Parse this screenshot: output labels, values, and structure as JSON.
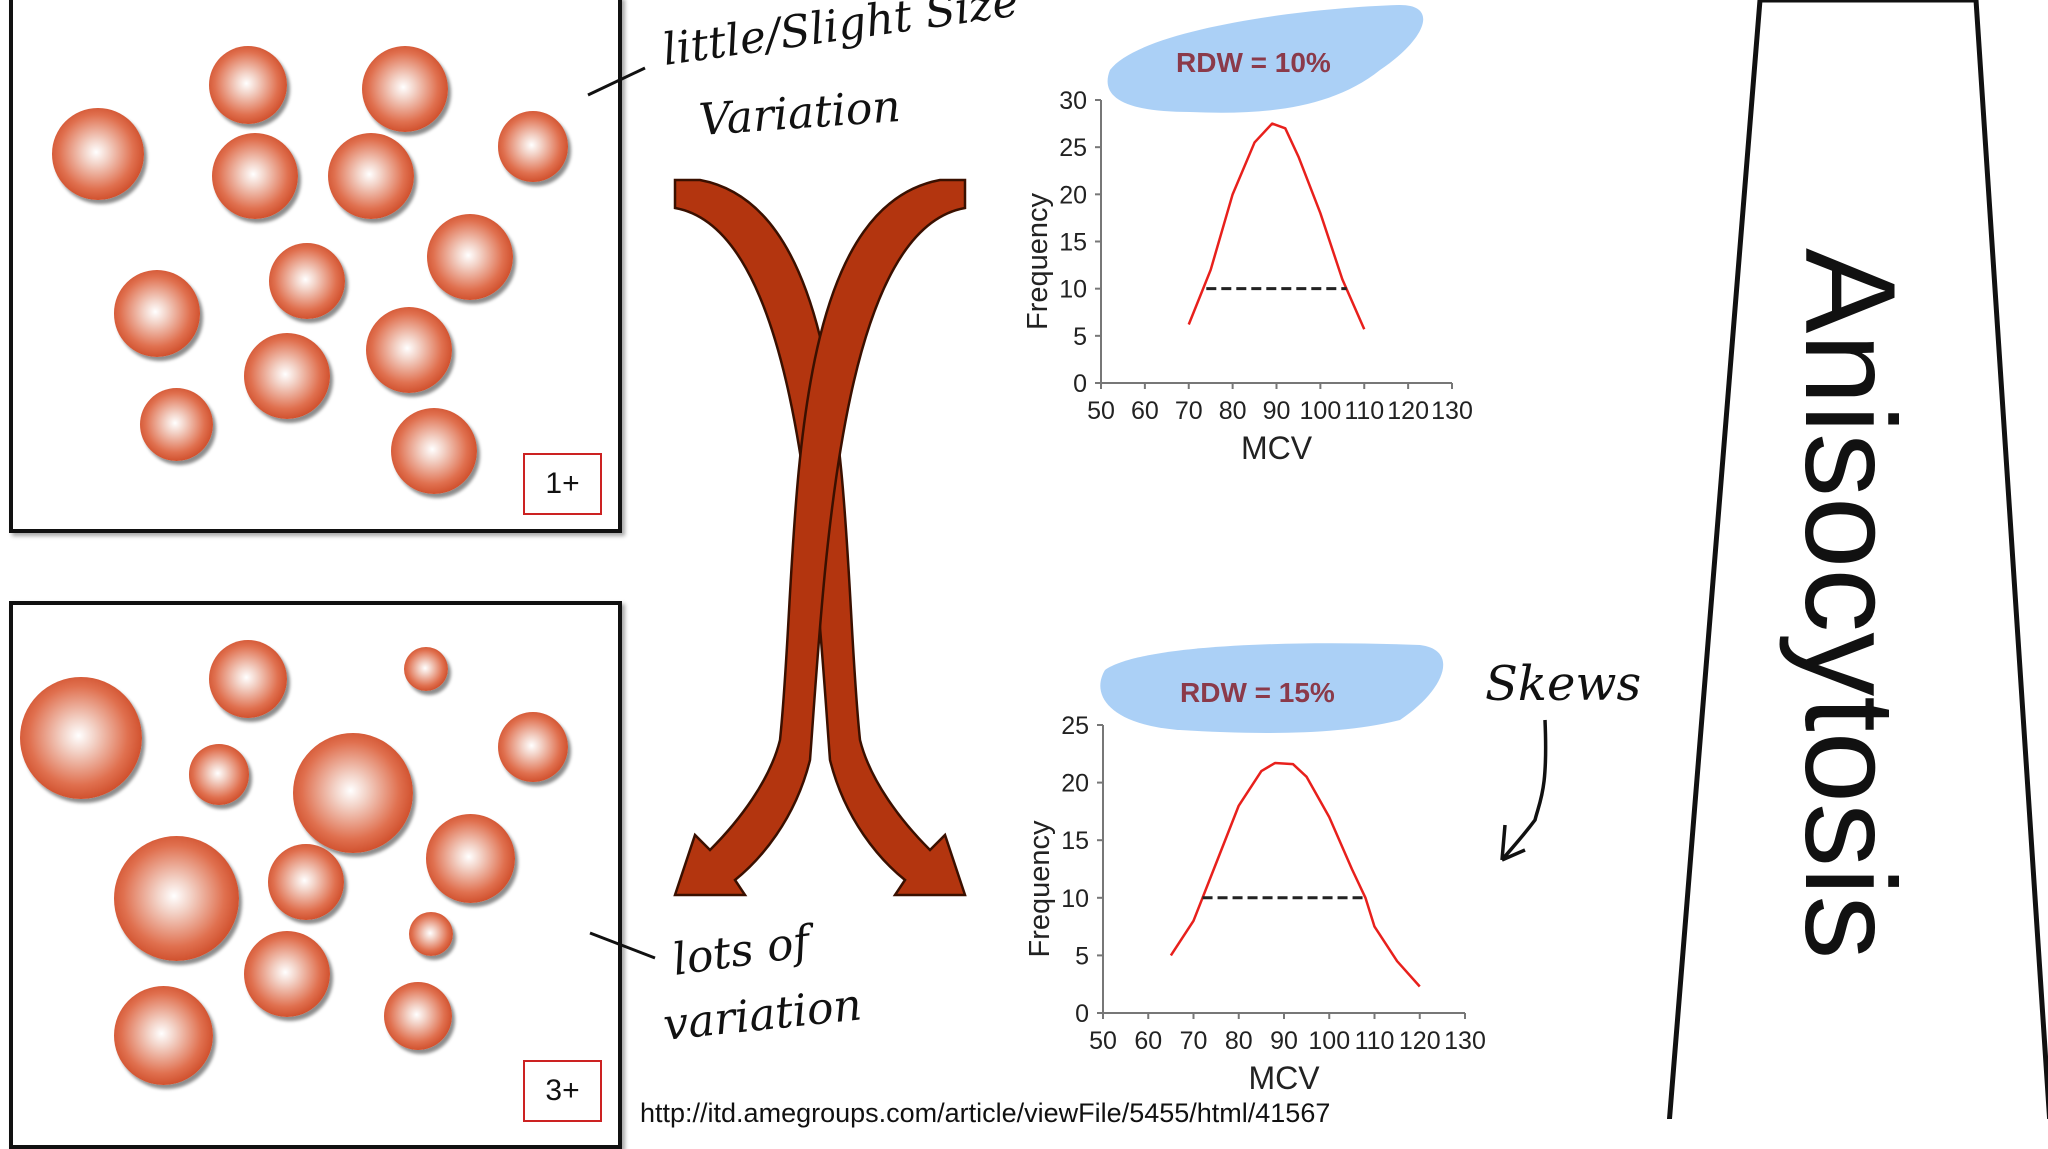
{
  "panels": [
    {
      "grade": "1+",
      "annotation": [
        "little/Slight Size",
        "Variation"
      ]
    },
    {
      "grade": "3+",
      "annotation": [
        "lots of",
        "variation"
      ]
    }
  ],
  "title": "Anisocytosis",
  "source_url": "http://itd.amegroups.com/article/viewFile/5455/html/41567",
  "skew_annotation": "Skews",
  "colors": {
    "cell": "#c8401c",
    "curve": "#e8201c",
    "highlight": "#9cc8f4",
    "rdw_text": "#8b3a4a",
    "arrow": "#a8300c"
  },
  "chart_data": [
    {
      "type": "line",
      "title": "RDW = 10%",
      "xlabel": "MCV",
      "ylabel": "Frequency",
      "xlim": [
        50,
        130
      ],
      "ylim": [
        0,
        30
      ],
      "xticks": [
        50,
        60,
        70,
        80,
        90,
        100,
        110,
        120,
        130
      ],
      "yticks": [
        0,
        5,
        10,
        15,
        20,
        25,
        30
      ],
      "x": [
        70,
        75,
        80,
        85,
        89,
        92,
        95,
        100,
        105,
        110
      ],
      "y": [
        6.2,
        12,
        20,
        25.5,
        27.5,
        27,
        24,
        18,
        11,
        5.7
      ],
      "width_line": {
        "x": [
          74,
          106
        ],
        "y": 10
      }
    },
    {
      "type": "line",
      "title": "RDW = 15%",
      "xlabel": "MCV",
      "ylabel": "Frequency",
      "xlim": [
        50,
        130
      ],
      "ylim": [
        0,
        25
      ],
      "xticks": [
        50,
        60,
        70,
        80,
        90,
        100,
        110,
        120,
        130
      ],
      "yticks": [
        0,
        5,
        10,
        15,
        20,
        25
      ],
      "x": [
        65,
        70,
        72,
        75,
        80,
        85,
        88,
        92,
        95,
        100,
        105,
        108,
        110,
        115,
        120
      ],
      "y": [
        5,
        8,
        10,
        13,
        18,
        21,
        21.7,
        21.6,
        20.5,
        17,
        12.5,
        10,
        7.5,
        4.5,
        2.3
      ],
      "width_line": {
        "x": [
          72,
          108
        ],
        "y": 10
      }
    }
  ]
}
